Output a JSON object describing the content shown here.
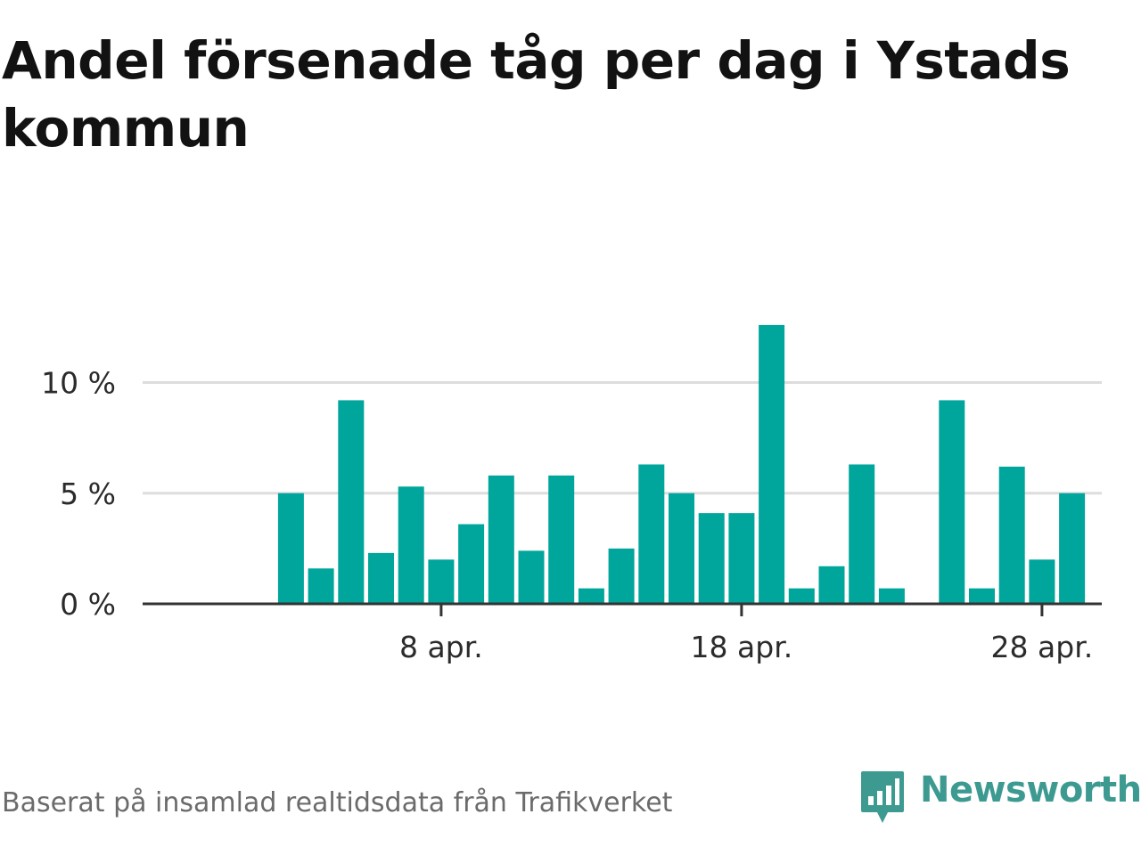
{
  "title": "Andel försenade tåg per dag i Ystads kommun",
  "source": "Baserat på insamlad realtidsdata från Trafikverket",
  "brand": {
    "name": "Newsworthy",
    "icon": "newsworthy-logo-icon",
    "color": "#3d9a91"
  },
  "colors": {
    "bar": "#00a59b",
    "grid": "#dddddd",
    "axis": "#333333"
  },
  "chart_data": {
    "type": "bar",
    "title": "Andel försenade tåg per dag i Ystads kommun",
    "xlabel": "",
    "ylabel": "",
    "x_dates": [
      "1 apr.",
      "2 apr.",
      "3 apr.",
      "4 apr.",
      "5 apr.",
      "6 apr.",
      "7 apr.",
      "8 apr.",
      "9 apr.",
      "10 apr.",
      "11 apr.",
      "12 apr.",
      "13 apr.",
      "14 apr.",
      "15 apr.",
      "16 apr.",
      "17 apr.",
      "18 apr.",
      "19 apr.",
      "20 apr.",
      "21 apr.",
      "22 apr.",
      "23 apr.",
      "24 apr.",
      "25 apr.",
      "26 apr.",
      "27 apr.",
      "28 apr.",
      "29 apr.",
      "30 apr."
    ],
    "values": [
      null,
      null,
      5.0,
      1.6,
      9.2,
      2.3,
      5.3,
      2.0,
      3.6,
      5.8,
      2.4,
      5.8,
      0.7,
      2.5,
      6.3,
      5.0,
      4.1,
      4.1,
      12.6,
      0.7,
      1.7,
      6.3,
      0.7,
      null,
      9.2,
      0.7,
      6.2,
      2.0,
      5.0,
      null
    ],
    "ylim": [
      0,
      13
    ],
    "y_ticks": [
      0,
      5,
      10
    ],
    "y_tick_labels": [
      "0 %",
      "5 %",
      "10 %"
    ],
    "x_ticks": [
      "8 apr.",
      "18 apr.",
      "28 apr."
    ],
    "grid": true,
    "legend": "none"
  }
}
